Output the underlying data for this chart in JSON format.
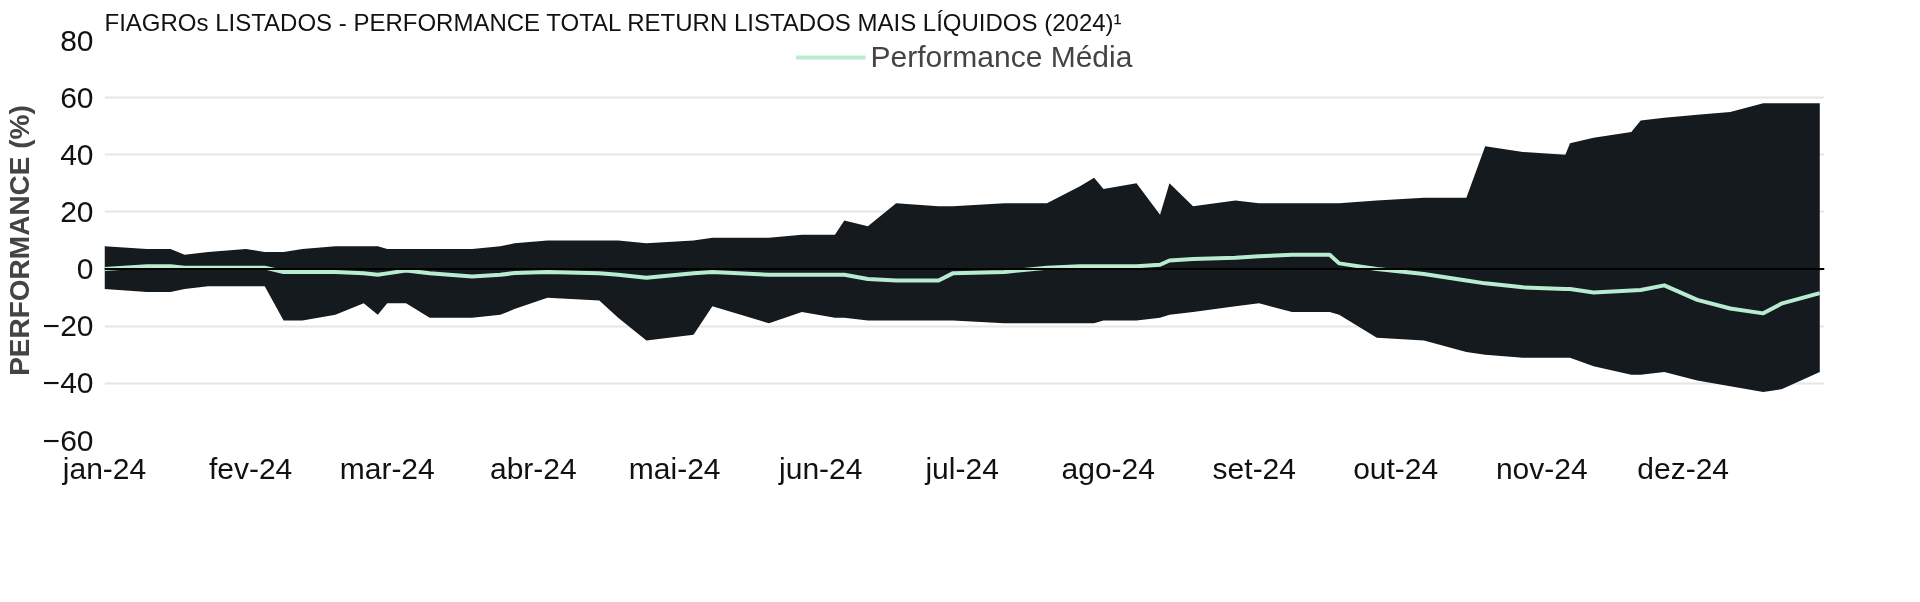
{
  "chart_data": {
    "type": "line",
    "title": "FIAGROs LISTADOS - PERFORMANCE TOTAL RETURN LISTADOS MAIS LÍQUIDOS (2024)¹",
    "ylabel": "PERFORMANCE (%)",
    "x": [
      "2024-01-01",
      "2024-01-10",
      "2024-01-15",
      "2024-01-18",
      "2024-01-23",
      "2024-01-31",
      "2024-02-04",
      "2024-02-08",
      "2024-02-12",
      "2024-02-19",
      "2024-02-25",
      "2024-02-28",
      "2024-03-01",
      "2024-03-05",
      "2024-03-10",
      "2024-03-19",
      "2024-03-25",
      "2024-03-28",
      "2024-04-04",
      "2024-04-15",
      "2024-04-19",
      "2024-04-25",
      "2024-05-05",
      "2024-05-09",
      "2024-05-21",
      "2024-05-28",
      "2024-06-04",
      "2024-06-06",
      "2024-06-11",
      "2024-06-17",
      "2024-06-26",
      "2024-06-29",
      "2024-07-10",
      "2024-07-19",
      "2024-07-26",
      "2024-07-29",
      "2024-07-31",
      "2024-08-07",
      "2024-08-12",
      "2024-08-14",
      "2024-08-19",
      "2024-08-28",
      "2024-09-02",
      "2024-09-09",
      "2024-09-17",
      "2024-09-19",
      "2024-09-27",
      "2024-10-07",
      "2024-10-16",
      "2024-10-20",
      "2024-10-28",
      "2024-11-06",
      "2024-11-07",
      "2024-11-12",
      "2024-11-20",
      "2024-11-22",
      "2024-11-27",
      "2024-12-04",
      "2024-12-11",
      "2024-12-18",
      "2024-12-22",
      "2024-12-30"
    ],
    "series": [
      {
        "name": "Performance Média",
        "color": "#b8ecd0",
        "values": [
          0,
          1,
          1,
          0.5,
          0.5,
          0.5,
          0.5,
          -1,
          -1,
          -1,
          -1.5,
          -2,
          -1.5,
          -0.5,
          -1.5,
          -2.6,
          -2,
          -1.4,
          -1,
          -1.5,
          -2,
          -3,
          -1.5,
          -1,
          -2,
          -2,
          -2,
          -2,
          -3.5,
          -4,
          -4,
          -1.5,
          -1,
          0.5,
          1,
          1,
          1,
          1,
          1.5,
          3,
          3.5,
          4,
          4.5,
          5,
          5,
          2,
          0,
          -1.7,
          -4,
          -5,
          -6.4,
          -7,
          -7,
          -8.2,
          -7.5,
          -7.3,
          -5.7,
          -10.8,
          -13.8,
          -15.5,
          -12,
          -8.4
        ],
        "lower": [
          -7,
          -8,
          -8,
          -7,
          -6,
          -6,
          -6,
          -18,
          -18,
          -16,
          -12,
          -16,
          -12,
          -12,
          -17,
          -17,
          -16,
          -14,
          -10,
          -11,
          -17,
          -25,
          -23,
          -13,
          -19,
          -15,
          -17,
          -17,
          -18,
          -18,
          -18,
          -18,
          -19,
          -19,
          -19,
          -19,
          -18,
          -18,
          -17,
          -16,
          -15,
          -13,
          -12,
          -15,
          -15,
          -16,
          -24,
          -25,
          -29,
          -30,
          -31,
          -31,
          -31,
          -34,
          -37,
          -37,
          -36,
          -39,
          -41,
          -43,
          -42,
          -36
        ],
        "upper": [
          8,
          7,
          7,
          5,
          6,
          7,
          6,
          6,
          7,
          8,
          8,
          8,
          7,
          7,
          7,
          7,
          8,
          9,
          10,
          10,
          10,
          9,
          10,
          11,
          11,
          12,
          12,
          17,
          15,
          23,
          22,
          22,
          23,
          23,
          29,
          32,
          28,
          30,
          19,
          30,
          22,
          24,
          23,
          23,
          23,
          23,
          24,
          25,
          25,
          43,
          41,
          40,
          44,
          46,
          48,
          52,
          53,
          54,
          55,
          58,
          58,
          58
        ]
      }
    ],
    "xlim": [
      "2024-01-01",
      "2024-12-31"
    ],
    "xticks": [
      {
        "value": "2024-01-01",
        "label": "jan-24"
      },
      {
        "value": "2024-02-01",
        "label": "fev-24"
      },
      {
        "value": "2024-03-01",
        "label": "mar-24"
      },
      {
        "value": "2024-04-01",
        "label": "abr-24"
      },
      {
        "value": "2024-05-01",
        "label": "mai-24"
      },
      {
        "value": "2024-06-01",
        "label": "jun-24"
      },
      {
        "value": "2024-07-01",
        "label": "jul-24"
      },
      {
        "value": "2024-08-01",
        "label": "ago-24"
      },
      {
        "value": "2024-09-01",
        "label": "set-24"
      },
      {
        "value": "2024-10-01",
        "label": "out-24"
      },
      {
        "value": "2024-11-01",
        "label": "nov-24"
      },
      {
        "value": "2024-12-01",
        "label": "dez-24"
      }
    ],
    "ylim": [
      -60,
      80
    ],
    "yticks": [
      -60,
      -40,
      -20,
      0,
      20,
      40,
      60,
      80
    ],
    "ref_lines": [
      {
        "axis": "y",
        "value": 0,
        "color": "#000000"
      }
    ],
    "grid": "y",
    "legend": "top"
  }
}
